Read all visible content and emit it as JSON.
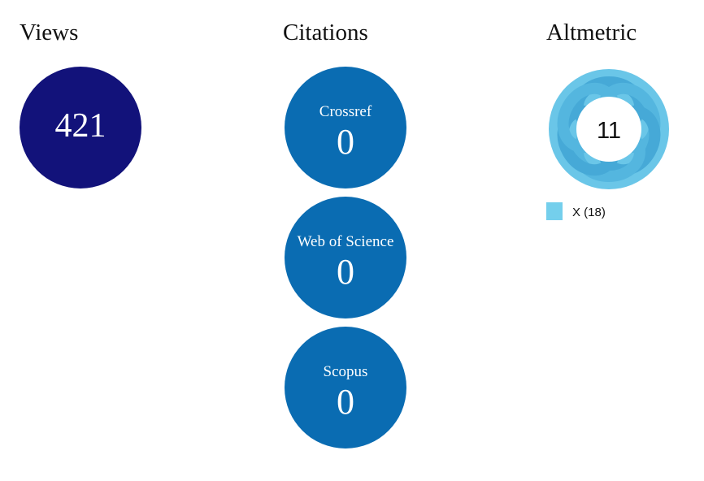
{
  "views": {
    "title": "Views",
    "value": 421
  },
  "citations": {
    "title": "Citations",
    "items": [
      {
        "label": "Crossref",
        "value": 0
      },
      {
        "label": "Web of Science",
        "value": 0
      },
      {
        "label": "Scopus",
        "value": 0
      }
    ]
  },
  "altmetric": {
    "title": "Altmetric",
    "score": 11,
    "legend": "X (18)"
  }
}
